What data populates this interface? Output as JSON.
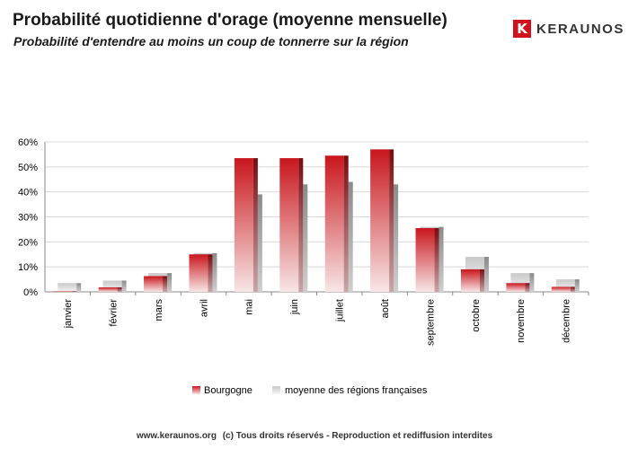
{
  "header": {
    "title": "Probabilité quotidienne d'orage (moyenne mensuelle)",
    "subtitle": "Probabilité d'entendre au moins un coup de tonnerre sur la région"
  },
  "logo": {
    "mark": "K",
    "text": "KERAUNOS"
  },
  "footer": {
    "site": "www.keraunos.org",
    "rights": "(c) Tous droits réservés - Reproduction et rediffusion interdites"
  },
  "colors": {
    "series1": "#cc1f24",
    "series2": "#d9d9d9",
    "axis": "#888888",
    "grid": "#d8d8d8"
  },
  "chart_data": {
    "type": "bar",
    "categories": [
      "janvier",
      "février",
      "mars",
      "avril",
      "mai",
      "juin",
      "juillet",
      "août",
      "septembre",
      "octobre",
      "novembre",
      "décembre"
    ],
    "series": [
      {
        "name": "Bourgogne",
        "values": [
          0.3,
          1.8,
          6.3,
          15.0,
          53.5,
          53.5,
          54.5,
          57.0,
          25.5,
          9.0,
          3.5,
          2.0
        ]
      },
      {
        "name": "moyenne des régions françaises",
        "values": [
          3.5,
          4.5,
          7.5,
          15.5,
          39.0,
          43.0,
          44.0,
          43.0,
          26.0,
          14.0,
          7.5,
          5.0
        ]
      }
    ],
    "yticks": [
      "0%",
      "10%",
      "20%",
      "30%",
      "40%",
      "50%",
      "60%"
    ],
    "ylim": [
      0,
      60
    ],
    "xlabel": "",
    "ylabel": "",
    "grid": true,
    "legend_position": "bottom"
  }
}
